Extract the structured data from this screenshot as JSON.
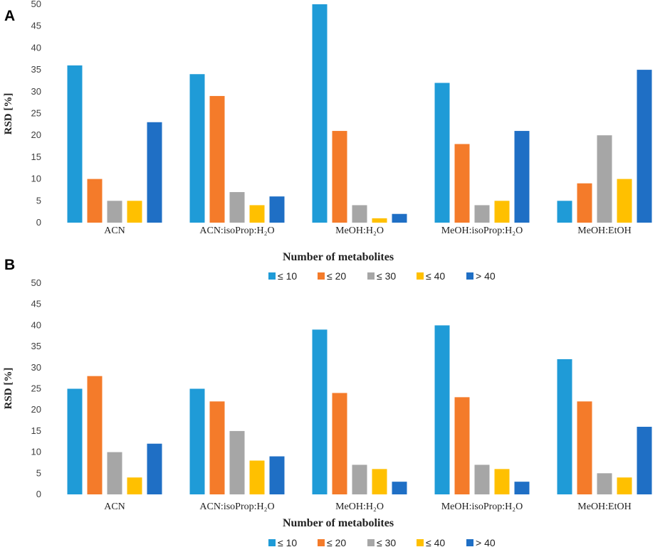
{
  "chart_data": [
    {
      "panel": "A",
      "type": "bar",
      "categories": [
        "ACN",
        "ACN:isoProp:H₂O",
        "MeOH:H₂O",
        "MeOH:isoProp:H₂O",
        "MeOH:EtOH"
      ],
      "series": [
        {
          "name": "≤ 10",
          "color": "#1f9bd7",
          "values": [
            36,
            34,
            50,
            32,
            5
          ]
        },
        {
          "name": "≤ 20",
          "color": "#f47b2a",
          "values": [
            10,
            29,
            21,
            18,
            9
          ]
        },
        {
          "name": "≤ 30",
          "color": "#a6a6a6",
          "values": [
            5,
            7,
            4,
            4,
            20
          ]
        },
        {
          "name": "≤ 40",
          "color": "#ffc000",
          "values": [
            5,
            4,
            1,
            5,
            10
          ]
        },
        {
          "name": "> 40",
          "color": "#1f6fc5",
          "values": [
            23,
            6,
            2,
            21,
            35
          ]
        }
      ],
      "yticks": [
        "0",
        "5",
        "10",
        "15",
        "20",
        "25",
        "30",
        "35",
        "40",
        "45",
        "50"
      ],
      "ylim": [
        0,
        50
      ],
      "xlabel": "Number of metabolites",
      "ylabel": "RSD [%]",
      "legend": "bottom"
    },
    {
      "panel": "B",
      "type": "bar",
      "categories": [
        "ACN",
        "ACN:isoProp:H₂O",
        "MeOH:H₂O",
        "MeOH:isoProp:H₂O",
        "MeOH:EtOH"
      ],
      "series": [
        {
          "name": "≤ 10",
          "color": "#1f9bd7",
          "values": [
            25,
            25,
            39,
            40,
            32
          ]
        },
        {
          "name": "≤ 20",
          "color": "#f47b2a",
          "values": [
            28,
            22,
            24,
            23,
            22
          ]
        },
        {
          "name": "≤ 30",
          "color": "#a6a6a6",
          "values": [
            10,
            15,
            7,
            7,
            5
          ]
        },
        {
          "name": "≤ 40",
          "color": "#ffc000",
          "values": [
            4,
            8,
            6,
            6,
            4
          ]
        },
        {
          "name": "> 40",
          "color": "#1f6fc5",
          "values": [
            12,
            9,
            3,
            3,
            16
          ]
        }
      ],
      "yticks": [
        "0",
        "5",
        "10",
        "15",
        "20",
        "25",
        "30",
        "35",
        "40",
        "45",
        "50"
      ],
      "ylim": [
        0,
        50
      ],
      "xlabel": "Number of metabolites",
      "ylabel": "RSD [%]",
      "legend": "bottom"
    }
  ]
}
